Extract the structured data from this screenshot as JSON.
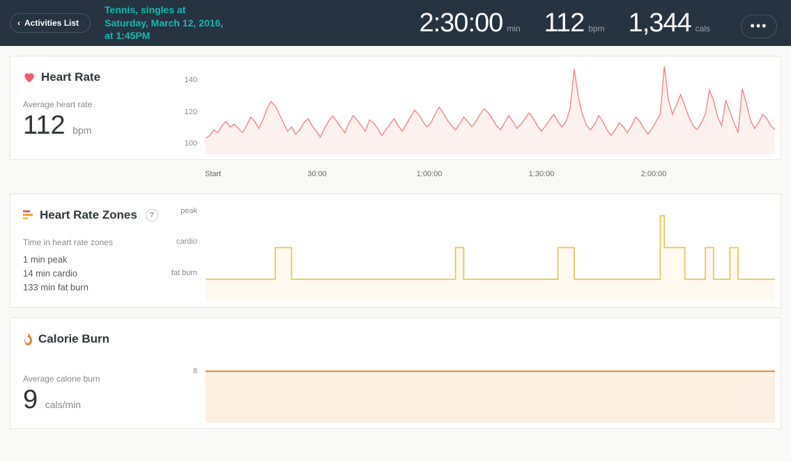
{
  "header": {
    "back_label": "Activities List",
    "activity_line1": "Tennis, singles at",
    "activity_line2": "Saturday, March 12, 2016,",
    "activity_line3": "at 1:45PM",
    "duration": "2:30:00",
    "duration_unit": "min",
    "bpm": "112",
    "bpm_unit": "bpm",
    "cals": "1,344",
    "cals_unit": "cals",
    "accent_color": "#14b9b3",
    "bg_color": "#263340"
  },
  "heart_rate": {
    "title": "Heart Rate",
    "icon_color": "#f55a6a",
    "sublabel": "Average heart rate",
    "value": "112",
    "unit": "bpm",
    "ylim": [
      90,
      155
    ],
    "yticks": [
      100,
      120,
      140
    ],
    "line_color": "#f28b8b",
    "fill_color": "#fdf1f0",
    "data": [
      101,
      103,
      107,
      105,
      110,
      113,
      109,
      111,
      108,
      105,
      110,
      116,
      113,
      108,
      114,
      122,
      127,
      124,
      118,
      112,
      106,
      109,
      104,
      107,
      112,
      115,
      110,
      106,
      102,
      108,
      113,
      117,
      113,
      109,
      105,
      112,
      117,
      114,
      110,
      106,
      114,
      112,
      108,
      103,
      107,
      111,
      115,
      110,
      106,
      111,
      116,
      121,
      118,
      113,
      109,
      112,
      118,
      123,
      119,
      114,
      110,
      107,
      111,
      116,
      113,
      109,
      113,
      118,
      122,
      119,
      115,
      110,
      107,
      112,
      117,
      113,
      108,
      111,
      115,
      119,
      115,
      110,
      106,
      110,
      114,
      118,
      113,
      109,
      113,
      122,
      150,
      130,
      118,
      110,
      107,
      111,
      117,
      113,
      107,
      103,
      107,
      112,
      109,
      105,
      110,
      116,
      113,
      108,
      104,
      108,
      113,
      118,
      152,
      128,
      118,
      125,
      132,
      124,
      116,
      110,
      107,
      112,
      118,
      135,
      128,
      116,
      110,
      128,
      120,
      112,
      105,
      136,
      126,
      114,
      108,
      112,
      118,
      115,
      110,
      107
    ]
  },
  "xaxis": {
    "ticks": [
      {
        "pos": 0,
        "label": "Start"
      },
      {
        "pos": 0.2,
        "label": "30:00"
      },
      {
        "pos": 0.4,
        "label": "1:00:00"
      },
      {
        "pos": 0.6,
        "label": "1:30:00"
      },
      {
        "pos": 0.8,
        "label": "2:00:00"
      }
    ]
  },
  "zones": {
    "title": "Heart Rate Zones",
    "sublabel": "Time in heart rate zones",
    "peak_label": "1 min peak",
    "cardio_label": "14 min cardio",
    "fatburn_label": "133 min fat burn",
    "yticks": [
      "peak",
      "cardio",
      "fat burn"
    ],
    "line_color": "#e7c852",
    "fill_color": "#fdf9ef",
    "data": [
      1,
      1,
      1,
      1,
      1,
      1,
      1,
      1,
      1,
      1,
      1,
      1,
      1,
      1,
      1,
      1,
      1,
      2,
      2,
      2,
      2,
      1,
      1,
      1,
      1,
      1,
      1,
      1,
      1,
      1,
      1,
      1,
      1,
      1,
      1,
      1,
      1,
      1,
      1,
      1,
      1,
      1,
      1,
      1,
      1,
      1,
      1,
      1,
      1,
      1,
      1,
      1,
      1,
      1,
      1,
      1,
      1,
      1,
      1,
      1,
      1,
      2,
      2,
      1,
      1,
      1,
      1,
      1,
      1,
      1,
      1,
      1,
      1,
      1,
      1,
      1,
      1,
      1,
      1,
      1,
      1,
      1,
      1,
      1,
      1,
      1,
      2,
      2,
      2,
      2,
      1,
      1,
      1,
      1,
      1,
      1,
      1,
      1,
      1,
      1,
      1,
      1,
      1,
      1,
      1,
      1,
      1,
      1,
      1,
      1,
      1,
      3,
      2,
      2,
      2,
      2,
      2,
      1,
      1,
      1,
      1,
      1,
      2,
      2,
      1,
      1,
      1,
      1,
      2,
      2,
      1,
      1,
      1,
      1,
      1,
      1,
      1,
      1,
      1,
      1
    ]
  },
  "calorie": {
    "title": "Calorie Burn",
    "icon_color": "#e8802b",
    "sublabel": "Average calorie burn",
    "value": "9",
    "unit": "cals/min",
    "ytick": "8",
    "line_color": "#e8802b",
    "fill_color": "#fbf0e2"
  }
}
